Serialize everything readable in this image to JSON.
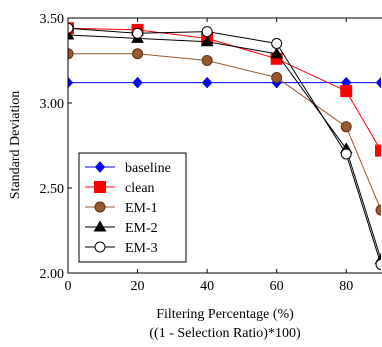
{
  "chart_data": {
    "type": "line",
    "xlabel": "Filtering Percentage (%)",
    "xlabel2": "((1 - Selection Ratio)*100)",
    "ylabel": "Standard Deviation",
    "xlim": [
      0,
      90
    ],
    "ylim": [
      2.0,
      3.5
    ],
    "xticks": [
      0,
      20,
      40,
      60,
      80
    ],
    "yticks": [
      2.0,
      2.5,
      3.0,
      3.5
    ],
    "ytick_labels": [
      "2.00",
      "2.50",
      "3.00",
      "3.50"
    ],
    "grid": false,
    "legend_position": "bottom-left",
    "x": [
      0,
      20,
      40,
      60,
      80,
      90
    ],
    "series": [
      {
        "name": "baseline",
        "color": "#0000ff",
        "marker": "diamond",
        "filled": true,
        "values": [
          3.12,
          3.12,
          3.12,
          3.12,
          3.12,
          3.12
        ]
      },
      {
        "name": "clean",
        "color": "#ff0000",
        "marker": "square",
        "filled": true,
        "values": [
          3.44,
          3.43,
          3.38,
          3.26,
          3.07,
          2.72
        ]
      },
      {
        "name": "EM-1",
        "color": "#99582c",
        "marker": "circle",
        "filled": true,
        "values": [
          3.29,
          3.29,
          3.25,
          3.15,
          2.86,
          2.37
        ]
      },
      {
        "name": "EM-2",
        "color": "#000000",
        "marker": "triangle",
        "filled": true,
        "values": [
          3.4,
          3.38,
          3.36,
          3.29,
          2.73,
          2.08
        ]
      },
      {
        "name": "EM-3",
        "color": "#000000",
        "marker": "circle",
        "filled": false,
        "values": [
          3.44,
          3.41,
          3.42,
          3.35,
          2.7,
          2.05
        ]
      }
    ]
  }
}
